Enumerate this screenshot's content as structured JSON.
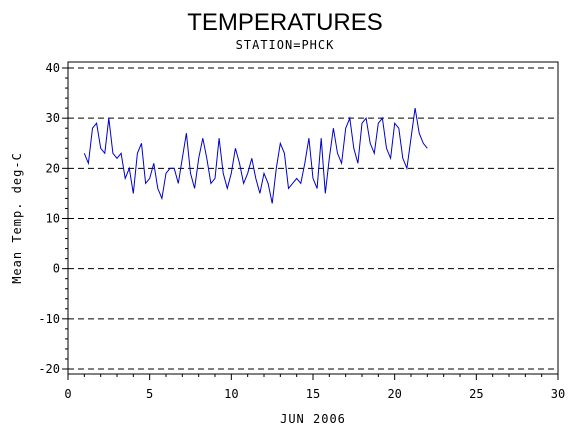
{
  "chart_data": {
    "type": "line",
    "title": "TEMPERATURES",
    "subtitle": "STATION=PHCK",
    "xlabel": "JUN 2006",
    "ylabel": "Mean Temp. deg-C",
    "xlim": [
      0,
      30
    ],
    "ylim": [
      -20,
      40
    ],
    "xticks": [
      "0",
      "5",
      "10",
      "15",
      "20",
      "25",
      "30"
    ],
    "yticks": [
      "-20",
      "-10",
      "0",
      "10",
      "20",
      "30",
      "40"
    ],
    "grid": "horizontal dashed at major y ticks",
    "line_color": "#0000cc",
    "x": [
      1.0,
      1.25,
      1.5,
      1.75,
      2.0,
      2.25,
      2.5,
      2.75,
      3.0,
      3.25,
      3.5,
      3.75,
      4.0,
      4.25,
      4.5,
      4.75,
      5.0,
      5.25,
      5.5,
      5.75,
      6.0,
      6.25,
      6.5,
      6.75,
      7.0,
      7.25,
      7.5,
      7.75,
      8.0,
      8.25,
      8.5,
      8.75,
      9.0,
      9.25,
      9.5,
      9.75,
      10.0,
      10.25,
      10.5,
      10.75,
      11.0,
      11.25,
      11.5,
      11.75,
      12.0,
      12.25,
      12.5,
      12.75,
      13.0,
      13.25,
      13.5,
      13.75,
      14.0,
      14.25,
      14.5,
      14.75,
      15.0,
      15.25,
      15.5,
      15.75,
      16.0,
      16.25,
      16.5,
      16.75,
      17.0,
      17.25,
      17.5,
      17.75,
      18.0,
      18.25,
      18.5,
      18.75,
      19.0,
      19.25,
      19.5,
      19.75,
      20.0,
      20.25,
      20.5,
      20.75,
      21.0,
      21.25,
      21.5,
      21.75,
      22.0,
      22.25,
      22.5,
      22.75,
      23.0,
      23.25
    ],
    "y": [
      23,
      21,
      28,
      29,
      24,
      23,
      30,
      23,
      22,
      23,
      18,
      20,
      15,
      23,
      25,
      17,
      18,
      21,
      16,
      14,
      19,
      20,
      20,
      17,
      22,
      27,
      19,
      16,
      22,
      26,
      22,
      17,
      18,
      26,
      19,
      16,
      19,
      24,
      21,
      17,
      19,
      22,
      18,
      15,
      19,
      17,
      13,
      20,
      25,
      23,
      16,
      17,
      18,
      17,
      21,
      26,
      18,
      16,
      26,
      15,
      22,
      28,
      23,
      21,
      28,
      30,
      24,
      21,
      29,
      30,
      25,
      23,
      29,
      30,
      24,
      22,
      29,
      28,
      22,
      20,
      26,
      32,
      27,
      25,
      24,
      null,
      null,
      null,
      null,
      null
    ]
  }
}
